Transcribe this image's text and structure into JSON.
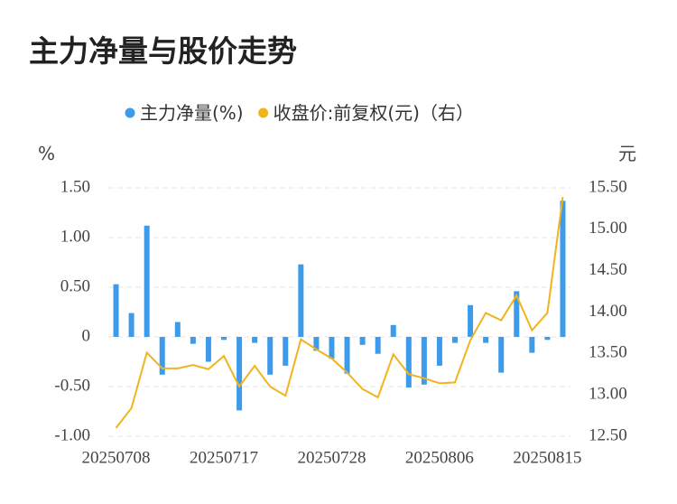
{
  "chart_data": {
    "type": "bar-line",
    "title": "主力净量与股价走势",
    "y_unit": "%",
    "y2_unit": "元",
    "categories": [
      "20250708",
      null,
      null,
      null,
      null,
      null,
      null,
      "20250717",
      null,
      null,
      null,
      null,
      null,
      null,
      "20250728",
      null,
      null,
      null,
      null,
      null,
      null,
      "20250806",
      null,
      null,
      null,
      null,
      null,
      null,
      "20250815",
      null
    ],
    "series": [
      {
        "name": "主力净量(%)",
        "color": "#3d9be9",
        "type": "bar",
        "values": [
          0.53,
          0.24,
          1.12,
          -0.38,
          0.15,
          -0.07,
          -0.25,
          -0.03,
          -0.74,
          -0.06,
          -0.38,
          -0.29,
          0.73,
          -0.14,
          -0.22,
          -0.37,
          -0.08,
          -0.17,
          0.12,
          -0.51,
          -0.48,
          -0.29,
          -0.06,
          0.32,
          -0.06,
          -0.36,
          0.46,
          -0.16,
          -0.03,
          1.37
        ]
      },
      {
        "name": "收盘价:前复权(元)（右）",
        "color": "#f0b41c",
        "type": "line",
        "axis": "y2",
        "values": [
          12.6,
          12.84,
          13.51,
          13.32,
          13.32,
          13.36,
          13.31,
          13.47,
          13.1,
          13.35,
          13.1,
          12.99,
          13.67,
          13.55,
          13.44,
          13.27,
          13.07,
          12.97,
          13.49,
          13.25,
          13.2,
          13.14,
          13.15,
          13.66,
          13.99,
          13.9,
          14.2,
          13.78,
          13.99,
          15.39
        ]
      }
    ],
    "ylim": [
      -1.0,
      1.5
    ],
    "yticks": [
      {
        "value": 1.5,
        "label": "1.50"
      },
      {
        "value": 1.0,
        "label": "1.00"
      },
      {
        "value": 0.5,
        "label": "0.50"
      },
      0,
      {
        "value": -0.5,
        "label": "-0.50"
      },
      {
        "value": -1.0,
        "label": "-1.00"
      }
    ],
    "y2lim": [
      12.5,
      15.5
    ],
    "y2ticks": [
      {
        "value": 15.5,
        "label": "15.50"
      },
      {
        "value": 15.0,
        "label": "15.00"
      },
      {
        "value": 14.5,
        "label": "14.50"
      },
      {
        "value": 14.0,
        "label": "14.00"
      },
      {
        "value": 13.5,
        "label": "13.50"
      },
      {
        "value": 13.0,
        "label": "13.00"
      },
      {
        "value": 12.5,
        "label": "12.50"
      }
    ],
    "grid": true
  }
}
